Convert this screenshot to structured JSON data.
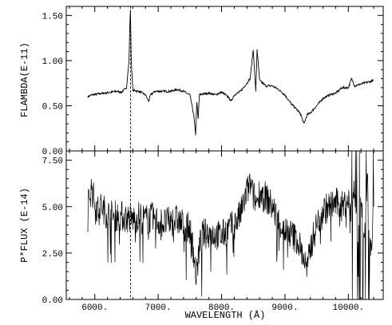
{
  "chart_data": [
    {
      "panel": "top",
      "type": "line",
      "title": "",
      "xlabel": "",
      "ylabel": "FLAMBDA(E-11)",
      "xlim": [
        5550,
        10550
      ],
      "ylim": [
        0.0,
        1.6
      ],
      "yticks": [
        0.0,
        0.5,
        1.0,
        1.5
      ],
      "ytick_labels": [
        "0.00",
        "0.50",
        "1.00",
        "1.50"
      ],
      "grid": false,
      "reference_line": {
        "x": 6563,
        "style": "dashed"
      },
      "series": [
        {
          "x": [
            5890,
            5950,
            6050,
            6150,
            6250,
            6350,
            6420,
            6450,
            6500,
            6540,
            6555,
            6563,
            6575,
            6600,
            6700,
            6800,
            6850,
            6880,
            6950,
            7000,
            7100,
            7200,
            7300,
            7400,
            7500,
            7560,
            7590,
            7610,
            7630,
            7650,
            7700,
            7800,
            7900,
            8000,
            8100,
            8150,
            8200,
            8300,
            8400,
            8450,
            8500,
            8540,
            8560,
            8600,
            8650,
            8700,
            8750,
            8800,
            8900,
            9000,
            9100,
            9200,
            9250,
            9300,
            9350,
            9400,
            9500,
            9600,
            9700,
            9800,
            9900,
            10000,
            10050,
            10100,
            10200,
            10300,
            10400
          ],
          "y": [
            0.6,
            0.62,
            0.63,
            0.64,
            0.65,
            0.66,
            0.65,
            0.67,
            0.7,
            1.0,
            1.45,
            1.55,
            1.0,
            0.67,
            0.66,
            0.62,
            0.55,
            0.62,
            0.66,
            0.66,
            0.66,
            0.66,
            0.68,
            0.66,
            0.62,
            0.4,
            0.18,
            0.55,
            0.35,
            0.62,
            0.63,
            0.64,
            0.62,
            0.65,
            0.6,
            0.55,
            0.62,
            0.66,
            0.75,
            0.8,
            1.12,
            0.65,
            1.13,
            0.78,
            0.75,
            0.72,
            0.72,
            0.72,
            0.68,
            0.62,
            0.52,
            0.45,
            0.4,
            0.3,
            0.4,
            0.42,
            0.5,
            0.58,
            0.62,
            0.64,
            0.7,
            0.7,
            0.8,
            0.72,
            0.74,
            0.76,
            0.78
          ]
        }
      ]
    },
    {
      "panel": "bottom",
      "type": "line",
      "title": "",
      "xlabel": "WAVELENGTH (Å)",
      "ylabel": "P*FLUX (E-14)",
      "xlim": [
        5550,
        10550
      ],
      "ylim": [
        0.0,
        8.0
      ],
      "xticks": [
        6000,
        7000,
        8000,
        9000,
        10000
      ],
      "xtick_labels": [
        "6000.",
        "7000.",
        "8000.",
        "9000.",
        "10000."
      ],
      "yticks": [
        0.0,
        2.5,
        5.0,
        7.5
      ],
      "ytick_labels": [
        "0.00",
        "2.50",
        "5.00",
        "7.50"
      ],
      "grid": false,
      "reference_line": {
        "x": 6563,
        "style": "dashed"
      },
      "series": [
        {
          "x": [
            5890,
            5900,
            5950,
            6000,
            6050,
            6100,
            6150,
            6200,
            6300,
            6400,
            6500,
            6600,
            6700,
            6800,
            6900,
            7000,
            7100,
            7200,
            7300,
            7400,
            7500,
            7550,
            7600,
            7650,
            7700,
            7800,
            7900,
            8000,
            8100,
            8200,
            8300,
            8400,
            8450,
            8500,
            8550,
            8600,
            8700,
            8800,
            8900,
            9000,
            9100,
            9200,
            9300,
            9350,
            9400,
            9500,
            9600,
            9700,
            9800,
            9900,
            10000,
            10050,
            10100,
            10150,
            10200,
            10250,
            10300,
            10350,
            10400
          ],
          "y": [
            3.0,
            5.5,
            6.0,
            5.2,
            4.8,
            5.0,
            4.8,
            4.6,
            4.5,
            4.5,
            4.4,
            4.3,
            4.5,
            4.3,
            4.4,
            4.2,
            4.1,
            4.2,
            4.3,
            4.0,
            3.8,
            2.8,
            1.2,
            2.8,
            3.5,
            3.6,
            3.5,
            3.4,
            3.8,
            4.0,
            4.6,
            5.8,
            6.2,
            5.6,
            5.2,
            5.8,
            5.5,
            5.0,
            4.2,
            3.7,
            3.5,
            3.2,
            2.2,
            1.5,
            2.8,
            4.0,
            4.8,
            5.0,
            5.2,
            5.0,
            5.4,
            4.5,
            6.0,
            3.5,
            5.5,
            3.0,
            6.5,
            2.0,
            5.0
          ]
        }
      ]
    }
  ]
}
